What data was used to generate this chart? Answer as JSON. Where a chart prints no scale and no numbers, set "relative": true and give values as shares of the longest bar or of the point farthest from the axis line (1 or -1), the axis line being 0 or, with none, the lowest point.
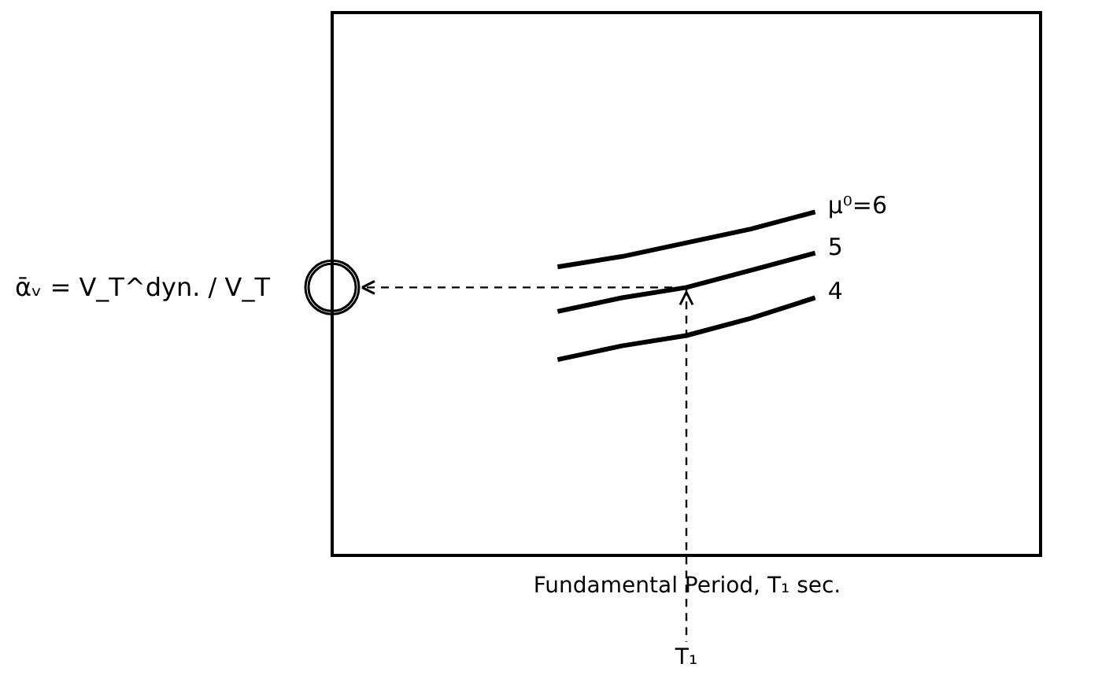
{
  "chart_data": {
    "type": "line",
    "relative": true,
    "xlabel": "Fundamental Period, T₁ sec.",
    "ylabel": "ᾱᵥ = V_T^dyn. / V_T",
    "categories": [
      null,
      null,
      null,
      null,
      null,
      null,
      null,
      null,
      null,
      null,
      null
    ],
    "series": [
      {
        "name": "μ⁰=6",
        "color": "#000000",
        "values": [
          null,
          null,
          null,
          0.84,
          0.87,
          0.91,
          0.95,
          1.0,
          null,
          null,
          null
        ]
      },
      {
        "name": "5",
        "color": "#000000",
        "values": [
          null,
          null,
          null,
          0.71,
          0.75,
          0.78,
          0.83,
          0.88,
          null,
          null,
          null
        ]
      },
      {
        "name": "4",
        "color": "#000000",
        "values": [
          null,
          null,
          null,
          0.57,
          0.61,
          0.64,
          0.69,
          0.75,
          null,
          null,
          null
        ]
      }
    ],
    "annotations": [
      "T₁"
    ],
    "ref_lines": [
      {
        "axis": "y",
        "value": 0.78,
        "color": "#000000",
        "line_style": "dashed"
      }
    ],
    "tick_labels": false,
    "grid": false,
    "legend": false,
    "marker": "none",
    "line_style": "solid"
  }
}
